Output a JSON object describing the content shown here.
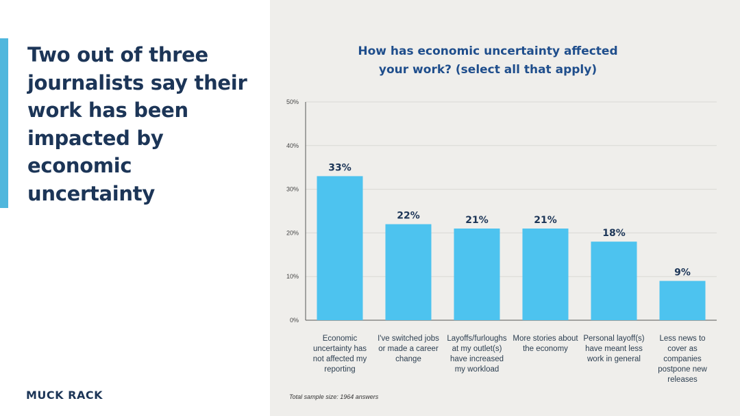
{
  "headline": "Two out of three journalists say their work has been impacted by economic uncertainty",
  "brand": "MUCK RACK",
  "footnote": "Total sample size: 1964 answers",
  "colors": {
    "accent": "#4fb7dd",
    "bar": "#4dc3ef",
    "headline": "#1c3557",
    "title": "#1f4e8c",
    "panel": "#efeeeb"
  },
  "chart_data": {
    "type": "bar",
    "title_lines": [
      "How has economic uncertainty affected",
      "your work? (select all that apply)"
    ],
    "categories": [
      "Economic uncertainty has not affected my reporting",
      "I've switched jobs or made a career change",
      "Layoffs/furloughs at my outlet(s) have increased my workload",
      "More stories about the economy",
      "Personal layoff(s) have meant less work in general",
      "Less news to cover as companies postpone new releases"
    ],
    "values": [
      33,
      22,
      21,
      21,
      18,
      9
    ],
    "data_labels": [
      "33%",
      "22%",
      "21%",
      "21%",
      "18%",
      "9%"
    ],
    "yticks": [
      0,
      10,
      20,
      30,
      40,
      50
    ],
    "ytick_labels": [
      "0%",
      "10%",
      "20%",
      "30%",
      "40%",
      "50%"
    ],
    "ylim": [
      0,
      50
    ],
    "grid": true,
    "xlabel": "",
    "ylabel": ""
  }
}
